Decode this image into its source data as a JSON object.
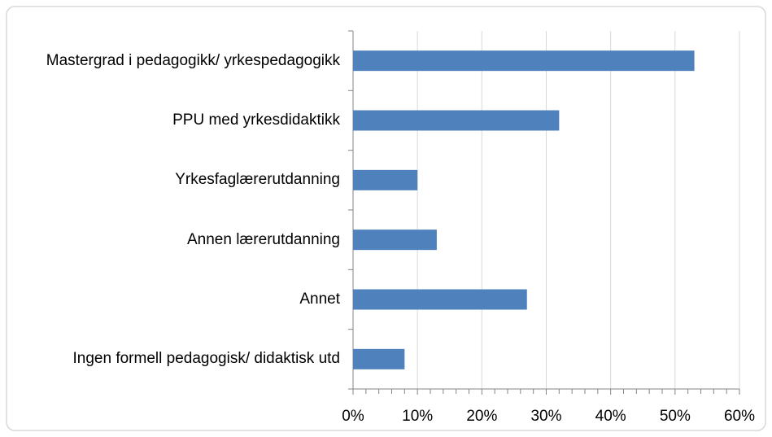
{
  "chart_data": {
    "type": "bar",
    "orientation": "horizontal",
    "categories": [
      "Mastergrad i pedagogikk/ yrkespedagogikk",
      "PPU med yrkesdidaktikk",
      "Yrkesfaglærerutdanning",
      "Annen lærerutdanning",
      "Annet",
      "Ingen formell pedagogisk/ didaktisk utd"
    ],
    "values": [
      53,
      32,
      10,
      13,
      27,
      8
    ],
    "color": "#4f81bd",
    "xlim": [
      0,
      60
    ],
    "xticks": [
      {
        "value": 0,
        "label": "0%"
      },
      {
        "value": 10,
        "label": "10%"
      },
      {
        "value": 20,
        "label": "20%"
      },
      {
        "value": 30,
        "label": "30%"
      },
      {
        "value": 40,
        "label": "40%"
      },
      {
        "value": 50,
        "label": "50%"
      },
      {
        "value": 60,
        "label": "60%"
      }
    ],
    "grid": true
  }
}
